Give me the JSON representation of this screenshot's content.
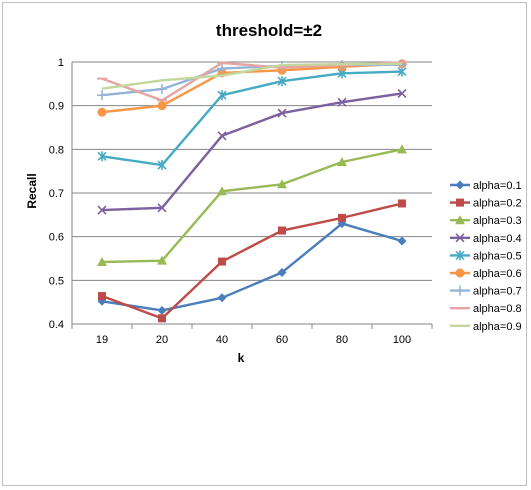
{
  "chart_data": {
    "type": "line",
    "title": "threshold=±2",
    "xlabel": "k",
    "ylabel": "Recall",
    "categories": [
      "19",
      "20",
      "40",
      "60",
      "80",
      "100"
    ],
    "ylim": [
      0.4,
      1.0
    ],
    "yticks": [
      "0.4",
      "0.5",
      "0.6",
      "0.7",
      "0.8",
      "0.9",
      "1"
    ],
    "ytick_values": [
      0.4,
      0.5,
      0.6,
      0.7,
      0.8,
      0.9,
      1.0
    ],
    "grid": "horizontal",
    "legend_position": "right",
    "series": [
      {
        "name": "alpha=0.1",
        "color": "#4a7ebb",
        "marker": "diamond",
        "values": [
          0.452,
          0.431,
          0.46,
          0.518,
          0.63,
          0.59
        ]
      },
      {
        "name": "alpha=0.2",
        "color": "#be4b48",
        "marker": "square",
        "values": [
          0.464,
          0.413,
          0.543,
          0.614,
          0.643,
          0.676
        ]
      },
      {
        "name": "alpha=0.3",
        "color": "#98b954",
        "marker": "triangle",
        "values": [
          0.542,
          0.545,
          0.704,
          0.72,
          0.771,
          0.8
        ]
      },
      {
        "name": "alpha=0.4",
        "color": "#7d60a0",
        "marker": "x",
        "values": [
          0.661,
          0.666,
          0.831,
          0.883,
          0.908,
          0.928
        ]
      },
      {
        "name": "alpha=0.5",
        "color": "#46aac5",
        "marker": "star",
        "values": [
          0.784,
          0.764,
          0.924,
          0.956,
          0.974,
          0.978
        ]
      },
      {
        "name": "alpha=0.6",
        "color": "#f79646",
        "marker": "circle",
        "values": [
          0.885,
          0.9,
          0.975,
          0.981,
          0.989,
          0.996
        ]
      },
      {
        "name": "alpha=0.7",
        "color": "#95b3d7",
        "marker": "plus",
        "values": [
          0.924,
          0.938,
          0.985,
          0.991,
          0.993,
          0.994
        ]
      },
      {
        "name": "alpha=0.8",
        "color": "#e6a5a3",
        "marker": "dash",
        "values": [
          0.962,
          0.912,
          0.998,
          0.987,
          0.993,
          0.999
        ]
      },
      {
        "name": "alpha=0.9",
        "color": "#c3d69b",
        "marker": "none",
        "values": [
          0.939,
          0.958,
          0.969,
          0.993,
          0.995,
          0.996
        ]
      }
    ]
  }
}
